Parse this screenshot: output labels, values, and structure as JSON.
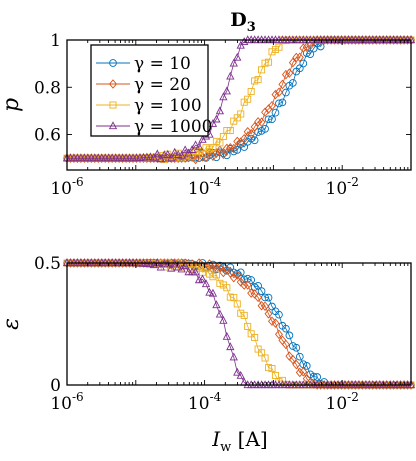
{
  "chart_data": [
    {
      "type": "line",
      "title": "D_3",
      "title_main": "D",
      "title_sub": "3",
      "xlabel": "",
      "ylabel": "p",
      "xscale": "log",
      "xlim": [
        1e-06,
        0.1
      ],
      "ylim": [
        0.45,
        1.0
      ],
      "xticks": [
        {
          "value": 1e-06,
          "base": "10",
          "exp": "-6"
        },
        {
          "value": 0.0001,
          "base": "10",
          "exp": "-4"
        },
        {
          "value": 0.01,
          "base": "10",
          "exp": "-2"
        }
      ],
      "yticks": [
        {
          "value": 0.6,
          "label": "0.6"
        },
        {
          "value": 0.8,
          "label": "0.8"
        },
        {
          "value": 1.0,
          "label": "1"
        }
      ],
      "legend_position": "top-left",
      "series": [
        {
          "name": "γ = 10",
          "color": "#0072BD",
          "marker": "circle",
          "x": [
            1e-06,
            1e-05,
            5e-05,
            0.0001,
            0.0002,
            0.0003,
            0.0005,
            0.0007,
            0.001,
            0.0015,
            0.002,
            0.003,
            0.004,
            0.006,
            0.01,
            0.1
          ],
          "y": [
            0.5,
            0.5,
            0.5,
            0.51,
            0.52,
            0.54,
            0.58,
            0.62,
            0.68,
            0.77,
            0.84,
            0.93,
            0.97,
            1.0,
            1.0,
            1.0
          ]
        },
        {
          "name": "γ = 20",
          "color": "#D95319",
          "marker": "diamond",
          "x": [
            1e-06,
            1e-05,
            5e-05,
            0.0001,
            0.0002,
            0.0003,
            0.0005,
            0.0007,
            0.001,
            0.0015,
            0.002,
            0.003,
            0.004,
            0.006,
            0.01,
            0.1
          ],
          "y": [
            0.5,
            0.5,
            0.5,
            0.51,
            0.53,
            0.56,
            0.62,
            0.67,
            0.74,
            0.84,
            0.91,
            0.97,
            1.0,
            1.0,
            1.0,
            1.0
          ]
        },
        {
          "name": "γ = 100",
          "color": "#EDB120",
          "marker": "square",
          "x": [
            1e-06,
            1e-05,
            5e-05,
            0.0001,
            0.00015,
            0.0002,
            0.0003,
            0.0004,
            0.0005,
            0.0007,
            0.001,
            0.0013,
            0.0016,
            0.002,
            0.003,
            0.01,
            0.1
          ],
          "y": [
            0.5,
            0.5,
            0.51,
            0.53,
            0.56,
            0.6,
            0.67,
            0.74,
            0.8,
            0.88,
            0.95,
            0.99,
            1.0,
            1.0,
            1.0,
            1.0,
            1.0
          ]
        },
        {
          "name": "γ = 1000",
          "color": "#7E2F8E",
          "marker": "triangle",
          "x": [
            1e-06,
            1e-05,
            3e-05,
            5e-05,
            7e-05,
            0.0001,
            0.00013,
            0.00016,
            0.0002,
            0.00025,
            0.0003,
            0.00035,
            0.0004,
            0.001,
            0.01,
            0.1
          ],
          "y": [
            0.5,
            0.5,
            0.51,
            0.52,
            0.54,
            0.58,
            0.63,
            0.69,
            0.77,
            0.87,
            0.94,
            0.98,
            1.0,
            1.0,
            1.0,
            1.0
          ]
        }
      ]
    },
    {
      "type": "line",
      "title": "",
      "xlabel": "I_w [A]",
      "xlabel_main": "I",
      "xlabel_sub": "w",
      "xlabel_unit": " [A]",
      "ylabel": "ε",
      "xscale": "log",
      "xlim": [
        1e-06,
        0.1
      ],
      "ylim": [
        0,
        0.5
      ],
      "xticks": [
        {
          "value": 1e-06,
          "base": "10",
          "exp": "-6"
        },
        {
          "value": 0.0001,
          "base": "10",
          "exp": "-4"
        },
        {
          "value": 0.01,
          "base": "10",
          "exp": "-2"
        }
      ],
      "yticks": [
        {
          "value": 0,
          "label": "0"
        },
        {
          "value": 0.5,
          "label": "0.5"
        }
      ],
      "series": [
        {
          "name": "γ = 10",
          "color": "#0072BD",
          "marker": "circle",
          "x": [
            1e-06,
            1e-05,
            5e-05,
            0.0001,
            0.0002,
            0.0003,
            0.0005,
            0.0007,
            0.001,
            0.0015,
            0.002,
            0.003,
            0.004,
            0.006,
            0.01,
            0.1
          ],
          "y": [
            0.5,
            0.5,
            0.5,
            0.49,
            0.48,
            0.46,
            0.42,
            0.38,
            0.32,
            0.23,
            0.16,
            0.07,
            0.03,
            0.0,
            0.0,
            0.0
          ]
        },
        {
          "name": "γ = 20",
          "color": "#D95319",
          "marker": "diamond",
          "x": [
            1e-06,
            1e-05,
            5e-05,
            0.0001,
            0.0002,
            0.0003,
            0.0005,
            0.0007,
            0.001,
            0.0015,
            0.002,
            0.003,
            0.004,
            0.006,
            0.01,
            0.1
          ],
          "y": [
            0.5,
            0.5,
            0.5,
            0.49,
            0.47,
            0.44,
            0.38,
            0.33,
            0.26,
            0.16,
            0.09,
            0.03,
            0.0,
            0.0,
            0.0,
            0.0
          ]
        },
        {
          "name": "γ = 100",
          "color": "#EDB120",
          "marker": "square",
          "x": [
            1e-06,
            1e-05,
            5e-05,
            0.0001,
            0.00015,
            0.0002,
            0.0003,
            0.0004,
            0.0005,
            0.0007,
            0.001,
            0.0013,
            0.0016,
            0.002,
            0.003,
            0.01,
            0.1
          ],
          "y": [
            0.5,
            0.5,
            0.49,
            0.47,
            0.44,
            0.4,
            0.33,
            0.26,
            0.2,
            0.12,
            0.05,
            0.01,
            0.0,
            0.0,
            0.0,
            0.0,
            0.0
          ]
        },
        {
          "name": "γ = 1000",
          "color": "#7E2F8E",
          "marker": "triangle",
          "x": [
            1e-06,
            1e-05,
            3e-05,
            5e-05,
            7e-05,
            0.0001,
            0.00013,
            0.00016,
            0.0002,
            0.00025,
            0.0003,
            0.00035,
            0.0004,
            0.001,
            0.01,
            0.1
          ],
          "y": [
            0.5,
            0.5,
            0.49,
            0.48,
            0.46,
            0.42,
            0.37,
            0.31,
            0.23,
            0.13,
            0.06,
            0.02,
            0.0,
            0.0,
            0.0,
            0.0
          ]
        }
      ]
    }
  ]
}
